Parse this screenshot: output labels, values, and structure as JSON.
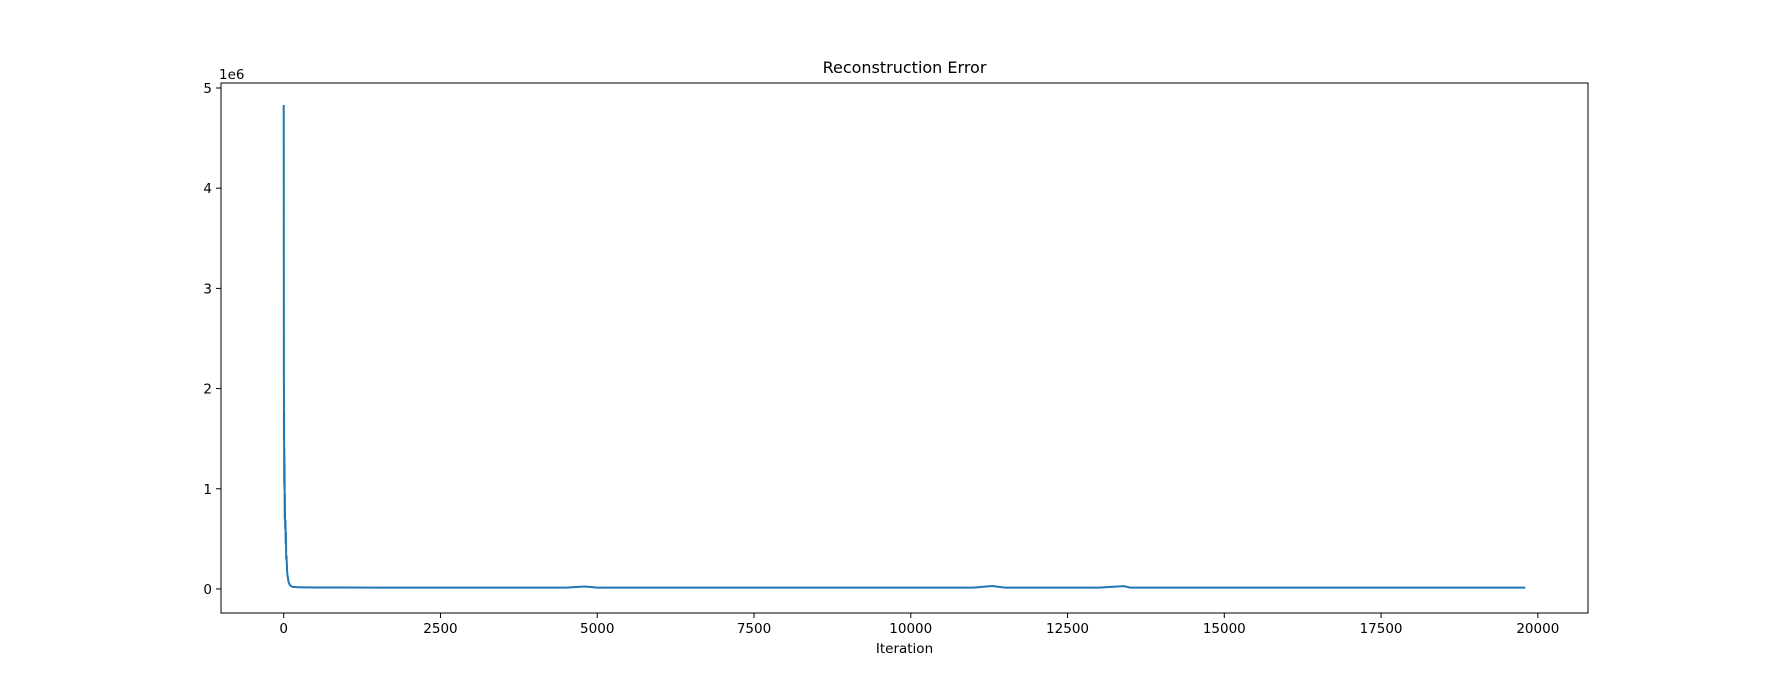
{
  "chart_data": {
    "type": "line",
    "title": "Reconstruction Error",
    "xlabel": "Iteration",
    "ylabel": "",
    "y_offset_label": "1e6",
    "y_scale_factor": 1000000,
    "xlim": [
      -1000,
      20800
    ],
    "ylim": [
      -240000,
      5050000
    ],
    "x_ticks": [
      0,
      2500,
      5000,
      7500,
      10000,
      12500,
      15000,
      17500,
      20000
    ],
    "x_tick_labels": [
      "0",
      "2500",
      "5000",
      "7500",
      "10000",
      "12500",
      "15000",
      "17500",
      "20000"
    ],
    "y_ticks": [
      0,
      1000000,
      2000000,
      3000000,
      4000000,
      5000000
    ],
    "y_tick_labels": [
      "0",
      "1",
      "2",
      "3",
      "4",
      "5"
    ],
    "grid": false,
    "series": [
      {
        "color": "#1f77b4",
        "x": [
          0,
          2,
          4,
          6,
          8,
          10,
          12,
          14,
          16,
          18,
          20,
          24,
          28,
          32,
          36,
          40,
          45,
          50,
          55,
          60,
          65,
          70,
          75,
          80,
          90,
          100,
          110,
          120,
          135,
          150,
          175,
          200,
          250,
          300,
          400,
          500,
          600,
          700,
          800,
          900,
          1000,
          1500,
          2000,
          2500,
          3000,
          3500,
          4000,
          4500,
          4800,
          5000,
          5500,
          6000,
          6500,
          7000,
          7500,
          8000,
          8500,
          9000,
          9500,
          10000,
          10500,
          11000,
          11300,
          11500,
          12000,
          12500,
          13000,
          13400,
          13500,
          14000,
          14500,
          15000,
          15500,
          16000,
          16500,
          17000,
          17500,
          18000,
          18500,
          19000,
          19500,
          19800
        ],
        "values": [
          4830000,
          3100000,
          1500000,
          1760000,
          1050000,
          1400000,
          1000000,
          1250000,
          700000,
          950000,
          800000,
          600000,
          680000,
          450000,
          560000,
          300000,
          330000,
          250000,
          170000,
          140000,
          120000,
          100000,
          80000,
          65000,
          50000,
          40000,
          32000,
          27000,
          22000,
          20000,
          19000,
          18000,
          17000,
          16000,
          15500,
          15000,
          15000,
          14500,
          14000,
          14000,
          14000,
          13500,
          13500,
          13000,
          13000,
          13000,
          13000,
          13000,
          25000,
          13000,
          13000,
          13000,
          13000,
          13000,
          13000,
          13000,
          13000,
          13000,
          13000,
          13000,
          13000,
          13000,
          30000,
          13000,
          13000,
          13000,
          13000,
          28000,
          13000,
          13000,
          13000,
          13000,
          13000,
          13000,
          13000,
          13000,
          13000,
          13000,
          13000,
          13000,
          13000,
          13000
        ]
      }
    ]
  }
}
